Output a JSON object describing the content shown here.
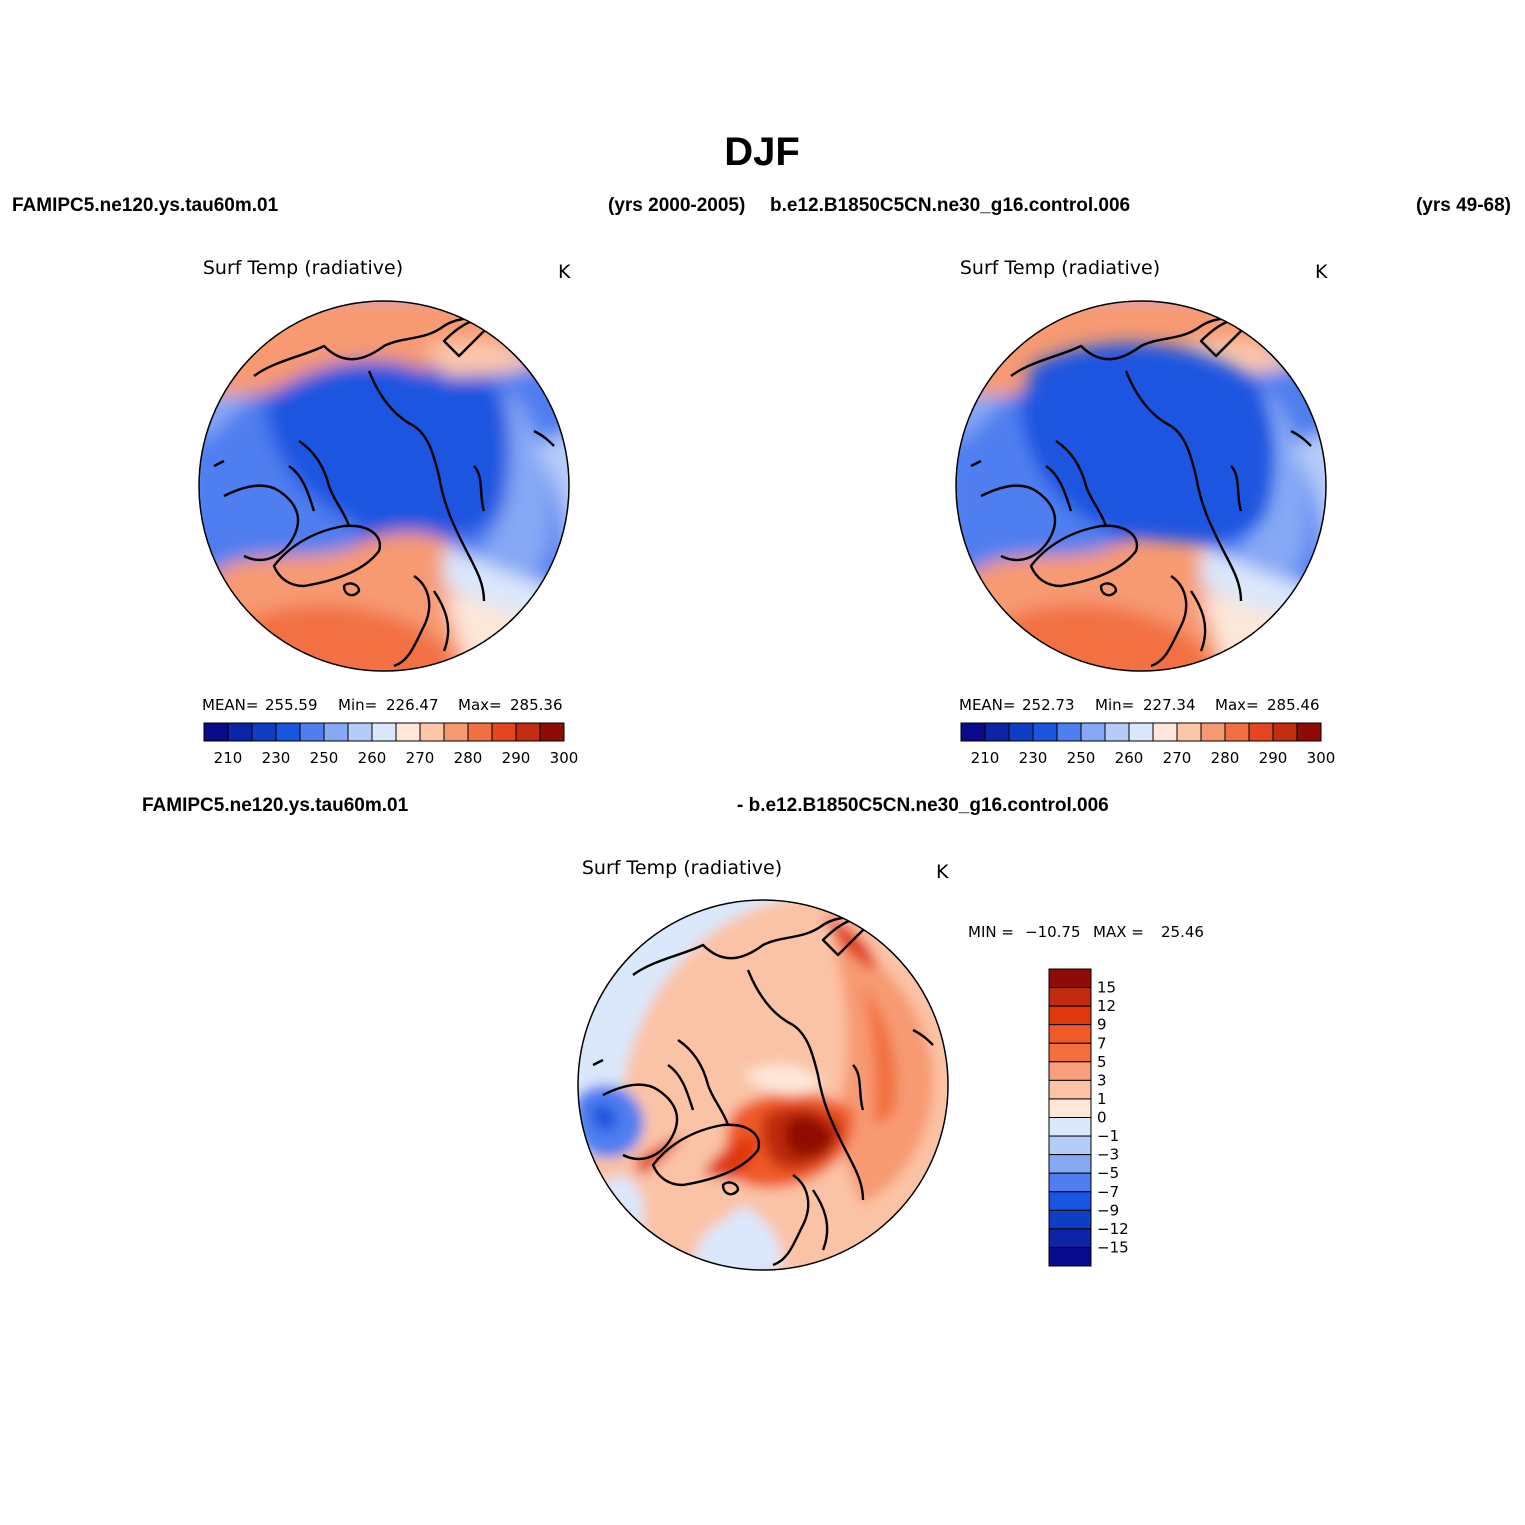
{
  "figure": {
    "season": "DJF",
    "case_left": "FAMIPC5.ne120.ys.tau60m.01",
    "years_left": "(yrs 2000-2005)",
    "case_right": "b.e12.B1850C5CN.ne30_g16.control.006",
    "years_right": "(yrs 49-68)",
    "diff_left": "FAMIPC5.ne120.ys.tau60m.01",
    "diff_right": "- b.e12.B1850C5CN.ne30_g16.control.006"
  },
  "chart_data": [
    {
      "type": "heatmap",
      "projection": "north polar stereographic",
      "title": "Surf Temp (radiative)",
      "units": "K",
      "stats": {
        "mean_label": "MEAN=",
        "mean": "255.59",
        "min_label": "Min=",
        "min": "226.47",
        "max_label": "Max=",
        "max": "285.36"
      },
      "levels": [
        210,
        220,
        230,
        240,
        250,
        255,
        260,
        265,
        270,
        275,
        280,
        285,
        290,
        295,
        300
      ],
      "tick_labels": [
        "210",
        "230",
        "250",
        "260",
        "270",
        "280",
        "290",
        "300"
      ]
    },
    {
      "type": "heatmap",
      "projection": "north polar stereographic",
      "title": "Surf Temp (radiative)",
      "units": "K",
      "stats": {
        "mean_label": "MEAN=",
        "mean": "252.73",
        "min_label": "Min=",
        "min": "227.34",
        "max_label": "Max=",
        "max": "285.46"
      },
      "levels": [
        210,
        220,
        230,
        240,
        250,
        255,
        260,
        265,
        270,
        275,
        280,
        285,
        290,
        295,
        300
      ],
      "tick_labels": [
        "210",
        "230",
        "250",
        "260",
        "270",
        "280",
        "290",
        "300"
      ]
    },
    {
      "type": "heatmap",
      "projection": "north polar stereographic",
      "title": "Surf Temp (radiative)",
      "units": "K",
      "stats": {
        "min_label": "MIN =",
        "min": "−10.75",
        "max_label": "MAX =",
        "max": "25.46"
      },
      "levels": [
        15,
        12,
        9,
        7,
        5,
        3,
        1,
        0,
        -1,
        -3,
        -5,
        -7,
        -9,
        -12,
        -15
      ],
      "tick_labels": [
        "15",
        "12",
        "9",
        "7",
        "5",
        "3",
        "1",
        "0",
        "−1",
        "−3",
        "−5",
        "−7",
        "−9",
        "−12",
        "−15"
      ]
    }
  ],
  "colors": {
    "abs_scale": [
      "#0a0a8c",
      "#0d24a6",
      "#0f3dc4",
      "#1a55e0",
      "#4f7ef0",
      "#86a8f5",
      "#b6ccf8",
      "#dbe7fb",
      "#fde7d8",
      "#fbc6a9",
      "#f79a72",
      "#f26f43",
      "#e5461f",
      "#c32d12",
      "#8f0b05"
    ],
    "diff_scale": [
      "#8f0b05",
      "#bf2a10",
      "#e0380d",
      "#f05a28",
      "#f2703c",
      "#f7a07a",
      "#fbc3a6",
      "#fde7d8",
      "#dbe7fb",
      "#b6ccf8",
      "#86a8f5",
      "#4f7ef0",
      "#1a55e0",
      "#0f3dc4",
      "#0d24a6",
      "#0a0a8c"
    ]
  }
}
